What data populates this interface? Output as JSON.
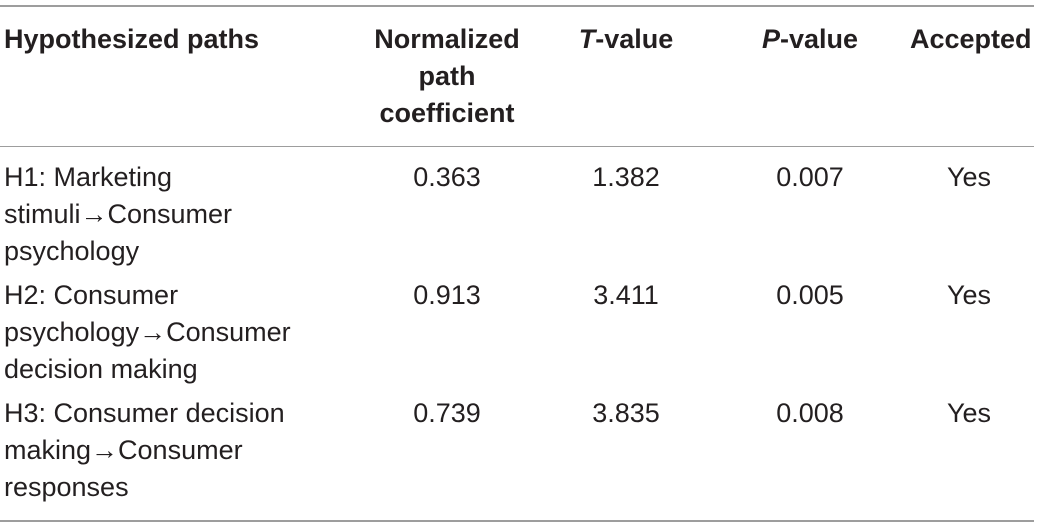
{
  "table": {
    "headers": {
      "paths": "Hypothesized paths",
      "coef_line1": "Normalized",
      "coef_line2": "path",
      "coef_line3": "coefficient",
      "t_italic": "T",
      "t_rest": "-value",
      "p_italic": "P",
      "p_rest": "-value",
      "accepted": "Accepted"
    },
    "rows": [
      {
        "path_line1": "H1: Marketing",
        "path_line2": "stimuli→Consumer",
        "path_line3": "psychology",
        "coefficient": "0.363",
        "t_value": "1.382",
        "p_value": "0.007",
        "accepted": "Yes"
      },
      {
        "path_line1": "H2: Consumer",
        "path_line2": "psychology→Consumer",
        "path_line3": "decision making",
        "coefficient": "0.913",
        "t_value": "3.411",
        "p_value": "0.005",
        "accepted": "Yes"
      },
      {
        "path_line1": "H3: Consumer decision",
        "path_line2": "making→Consumer",
        "path_line3": "responses",
        "coefficient": "0.739",
        "t_value": "3.835",
        "p_value": "0.008",
        "accepted": "Yes"
      }
    ]
  }
}
